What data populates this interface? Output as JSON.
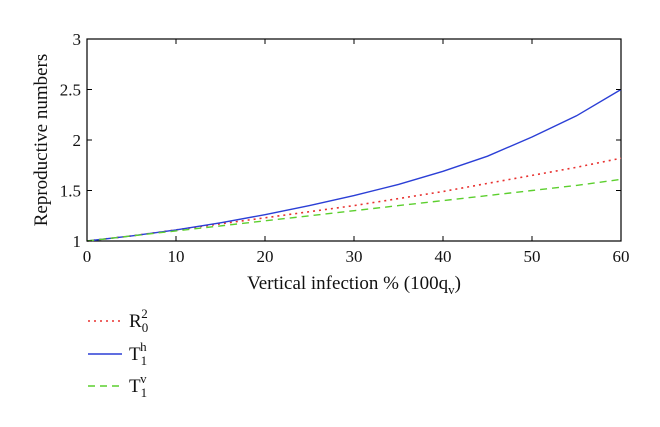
{
  "chart_data": {
    "type": "line",
    "title": "",
    "xlabel": "Vertical infection % (100q",
    "xlabel_sub": "v",
    "xlabel_close": ")",
    "ylabel": "Reproductive numbers",
    "xlim": [
      0,
      60
    ],
    "ylim": [
      1,
      3
    ],
    "xticks": [
      0,
      10,
      20,
      30,
      40,
      50,
      60
    ],
    "yticks": [
      1,
      1.5,
      2,
      2.5,
      3
    ],
    "ytick_labels": [
      "1",
      "1.5",
      "2",
      "2.5",
      "3"
    ],
    "grid": false,
    "legend_position": "below-left",
    "x": [
      0,
      5,
      10,
      15,
      20,
      25,
      30,
      35,
      40,
      45,
      50,
      55,
      60
    ],
    "series": [
      {
        "name": "R",
        "sub": "0",
        "sup": "2",
        "color": "#e8312f",
        "style": "dotted",
        "values": [
          1.0,
          1.05,
          1.11,
          1.17,
          1.23,
          1.29,
          1.35,
          1.42,
          1.49,
          1.57,
          1.65,
          1.73,
          1.82
        ]
      },
      {
        "name": "T",
        "sub": "1",
        "sup": "h",
        "color": "#2b3fd6",
        "style": "solid",
        "values": [
          1.0,
          1.05,
          1.11,
          1.18,
          1.26,
          1.35,
          1.45,
          1.56,
          1.69,
          1.84,
          2.03,
          2.24,
          2.5
        ]
      },
      {
        "name": "T",
        "sub": "1",
        "sup": "v",
        "color": "#5ccf2e",
        "style": "dashed",
        "values": [
          1.0,
          1.05,
          1.1,
          1.15,
          1.2,
          1.25,
          1.3,
          1.35,
          1.4,
          1.45,
          1.5,
          1.55,
          1.61
        ]
      }
    ]
  }
}
